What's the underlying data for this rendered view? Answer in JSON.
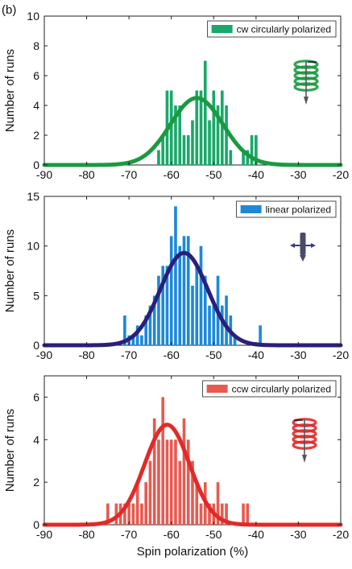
{
  "figure": {
    "panel_label": "(b)"
  },
  "chart_data": [
    {
      "type": "bar",
      "legend": "cw circularly polarized",
      "legend_position": "top-right",
      "icon": "clockwise-helix-icon",
      "color": "#1aa86a",
      "curve_color": "#1a9a40",
      "ylabel": "Number of runs",
      "xlabel": "",
      "xlim": [
        -90,
        -20
      ],
      "ylim": [
        0,
        10
      ],
      "xticks": [
        -90,
        -80,
        -70,
        -60,
        -50,
        -40,
        -30,
        -20
      ],
      "yticks": [
        0,
        2,
        4,
        6,
        8,
        10
      ],
      "bin_width": 1,
      "x": [
        -63,
        -62,
        -61,
        -60,
        -59,
        -58,
        -57,
        -56,
        -55,
        -54,
        -53,
        -52,
        -51,
        -50,
        -49,
        -48,
        -47,
        -46,
        -45,
        -44,
        -43,
        -42,
        -41,
        -40
      ],
      "values": [
        1,
        2,
        5,
        5,
        4,
        4,
        2,
        2,
        3,
        5,
        5,
        7,
        3,
        5,
        4,
        5,
        4,
        1,
        0,
        0,
        1,
        1,
        2,
        2
      ],
      "fit": {
        "mean": -54,
        "sigma": 6.2,
        "peak": 4.5
      }
    },
    {
      "type": "bar",
      "legend": "linear polarized",
      "legend_position": "top-right",
      "icon": "linear-polarization-icon",
      "color": "#1e88d8",
      "curve_color": "#2a1f7a",
      "ylabel": "Number of runs",
      "xlabel": "",
      "xlim": [
        -90,
        -20
      ],
      "ylim": [
        0,
        15
      ],
      "xticks": [
        -90,
        -80,
        -70,
        -60,
        -50,
        -40,
        -30,
        -20
      ],
      "yticks": [
        0,
        5,
        10,
        15
      ],
      "bin_width": 1,
      "x": [
        -71,
        -70,
        -69,
        -68,
        -67,
        -66,
        -65,
        -64,
        -63,
        -62,
        -61,
        -60,
        -59,
        -58,
        -57,
        -56,
        -55,
        -54,
        -53,
        -52,
        -51,
        -50,
        -49,
        -48,
        -47,
        -46,
        -45,
        -44,
        -43,
        -42,
        -41,
        -40,
        -39
      ],
      "values": [
        3,
        1,
        1,
        2,
        1,
        3,
        4,
        5,
        7,
        8,
        8,
        11,
        14,
        10,
        11,
        11,
        6,
        8,
        10,
        7,
        4,
        4,
        7,
        4,
        5,
        3,
        1,
        0,
        0,
        0,
        0,
        0,
        2
      ],
      "fit": {
        "mean": -57,
        "sigma": 5.6,
        "peak": 9.3
      }
    },
    {
      "type": "bar",
      "legend": "ccw circularly polarized",
      "legend_position": "top-right",
      "icon": "counterclockwise-helix-icon",
      "color": "#e85a50",
      "curve_color": "#e02a2a",
      "ylabel": "Number of runs",
      "xlabel": "Spin polarization (%)",
      "xlim": [
        -90,
        -20
      ],
      "ylim": [
        0,
        7
      ],
      "xticks": [
        -90,
        -80,
        -70,
        -60,
        -50,
        -40,
        -30,
        -20
      ],
      "yticks": [
        0,
        2,
        4,
        6
      ],
      "bin_width": 1,
      "x": [
        -75,
        -74,
        -73,
        -72,
        -71,
        -70,
        -69,
        -68,
        -67,
        -66,
        -65,
        -64,
        -63,
        -62,
        -61,
        -60,
        -59,
        -58,
        -57,
        -56,
        -55,
        -54,
        -53,
        -52,
        -51,
        -50,
        -49,
        -48,
        -47,
        -46,
        -45,
        -44,
        -43,
        -42
      ],
      "values": [
        1,
        0,
        1,
        1,
        1,
        1,
        1,
        2,
        1,
        2,
        3,
        5,
        4,
        6,
        4,
        4,
        4,
        3,
        5,
        4,
        3,
        2,
        1,
        2,
        1,
        1,
        2,
        1,
        1,
        0,
        0,
        0,
        1,
        1
      ],
      "fit": {
        "mean": -61,
        "sigma": 5.3,
        "peak": 4.7
      }
    }
  ]
}
